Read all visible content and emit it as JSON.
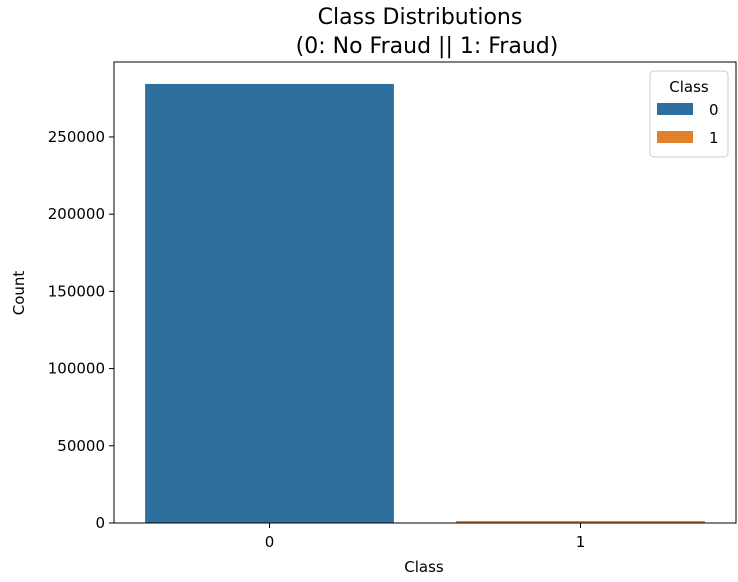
{
  "chart_data": {
    "type": "bar",
    "title": "Class Distributions",
    "subtitle": "(0: No Fraud || 1: Fraud)",
    "xlabel": "Class",
    "ylabel": "Count",
    "categories": [
      "0",
      "1"
    ],
    "values": [
      284315,
      492
    ],
    "colors": [
      "#2e6f9e",
      "#e1812c"
    ],
    "ylim": [
      0,
      298530
    ],
    "yticks": [
      0,
      50000,
      100000,
      150000,
      200000,
      250000
    ],
    "ytick_labels": [
      "0",
      "50000",
      "100000",
      "150000",
      "200000",
      "250000"
    ],
    "grid": false,
    "legend": {
      "title": "Class",
      "placement": "top-right",
      "entries": [
        "0",
        "1"
      ]
    }
  }
}
